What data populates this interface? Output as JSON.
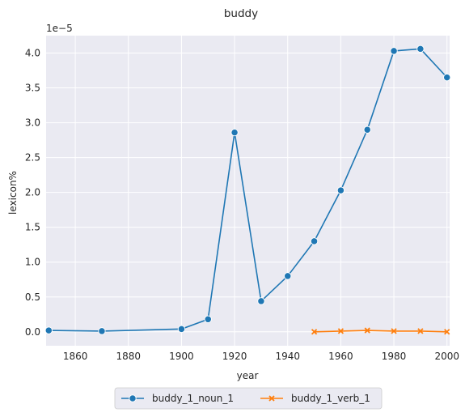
{
  "chart_data": {
    "type": "line",
    "title": "buddy",
    "xlabel": "year",
    "ylabel": "lexicon%",
    "y_multiplier_label": "1e−5",
    "xlim": [
      1849,
      2001
    ],
    "ylim": [
      -0.2,
      4.25
    ],
    "x_ticks": [
      1860,
      1880,
      1900,
      1920,
      1940,
      1960,
      1980,
      2000
    ],
    "y_ticks": [
      0.0,
      0.5,
      1.0,
      1.5,
      2.0,
      2.5,
      3.0,
      3.5,
      4.0
    ],
    "grid": true,
    "legend_position": "bottom-center",
    "series": [
      {
        "name": "buddy_1_noun_1",
        "color": "#1f77b4",
        "marker": "circle",
        "x": [
          1850,
          1870,
          1900,
          1910,
          1920,
          1930,
          1940,
          1950,
          1960,
          1970,
          1980,
          1990,
          2000
        ],
        "y": [
          0.02,
          0.01,
          0.04,
          0.18,
          2.86,
          0.44,
          0.8,
          1.3,
          2.03,
          2.9,
          4.03,
          4.06,
          3.65
        ]
      },
      {
        "name": "buddy_1_verb_1",
        "color": "#ff7f0e",
        "marker": "x",
        "x": [
          1950,
          1960,
          1970,
          1980,
          1990,
          2000
        ],
        "y": [
          0.0,
          0.01,
          0.02,
          0.01,
          0.01,
          0.0
        ]
      }
    ]
  }
}
